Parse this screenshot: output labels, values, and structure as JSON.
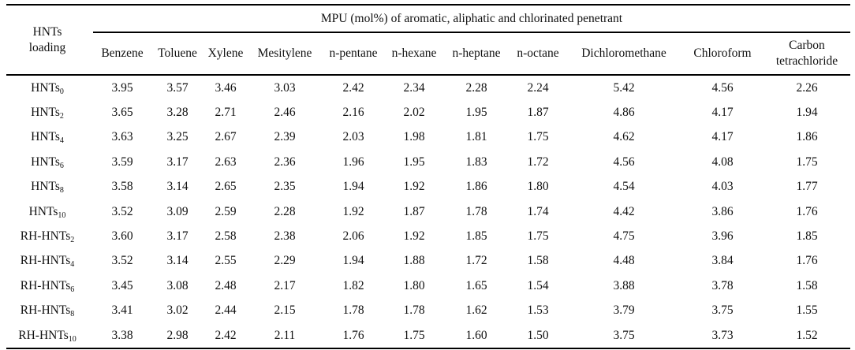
{
  "chart_data": {
    "type": "table",
    "row_header_label": [
      "HNTs",
      "loading"
    ],
    "group_header": "MPU (mol%) of aromatic, aliphatic and chlorinated penetrant",
    "columns": [
      {
        "label": "Benzene"
      },
      {
        "label": "Toluene"
      },
      {
        "label": "Xylene"
      },
      {
        "label": "Mesitylene"
      },
      {
        "label": "n-pentane"
      },
      {
        "label": "n-hexane"
      },
      {
        "label": "n-heptane"
      },
      {
        "label": "n-octane"
      },
      {
        "label": "Dichloromethane"
      },
      {
        "label": "Chloroform"
      },
      {
        "label": "Carbon",
        "label2": "tetrachloride"
      }
    ],
    "rows": [
      {
        "prefix": "HNTs",
        "sub": "0",
        "values": [
          "3.95",
          "3.57",
          "3.46",
          "3.03",
          "2.42",
          "2.34",
          "2.28",
          "2.24",
          "5.42",
          "4.56",
          "2.26"
        ]
      },
      {
        "prefix": "HNTs",
        "sub": "2",
        "values": [
          "3.65",
          "3.28",
          "2.71",
          "2.46",
          "2.16",
          "2.02",
          "1.95",
          "1.87",
          "4.86",
          "4.17",
          "1.94"
        ]
      },
      {
        "prefix": "HNTs",
        "sub": "4",
        "values": [
          "3.63",
          "3.25",
          "2.67",
          "2.39",
          "2.03",
          "1.98",
          "1.81",
          "1.75",
          "4.62",
          "4.17",
          "1.86"
        ]
      },
      {
        "prefix": "HNTs",
        "sub": "6",
        "values": [
          "3.59",
          "3.17",
          "2.63",
          "2.36",
          "1.96",
          "1.95",
          "1.83",
          "1.72",
          "4.56",
          "4.08",
          "1.75"
        ]
      },
      {
        "prefix": "HNTs",
        "sub": "8",
        "values": [
          "3.58",
          "3.14",
          "2.65",
          "2.35",
          "1.94",
          "1.92",
          "1.86",
          "1.80",
          "4.54",
          "4.03",
          "1.77"
        ]
      },
      {
        "prefix": "HNTs",
        "sub": "10",
        "values": [
          "3.52",
          "3.09",
          "2.59",
          "2.28",
          "1.92",
          "1.87",
          "1.78",
          "1.74",
          "4.42",
          "3.86",
          "1.76"
        ]
      },
      {
        "prefix": "RH-HNTs",
        "sub": "2",
        "values": [
          "3.60",
          "3.17",
          "2.58",
          "2.38",
          "2.06",
          "1.92",
          "1.85",
          "1.75",
          "4.75",
          "3.96",
          "1.85"
        ]
      },
      {
        "prefix": "RH-HNTs",
        "sub": "4",
        "values": [
          "3.52",
          "3.14",
          "2.55",
          "2.29",
          "1.94",
          "1.88",
          "1.72",
          "1.58",
          "4.48",
          "3.84",
          "1.76"
        ]
      },
      {
        "prefix": "RH-HNTs",
        "sub": "6",
        "values": [
          "3.45",
          "3.08",
          "2.48",
          "2.17",
          "1.82",
          "1.80",
          "1.65",
          "1.54",
          "3.88",
          "3.78",
          "1.58"
        ]
      },
      {
        "prefix": "RH-HNTs",
        "sub": "8",
        "values": [
          "3.41",
          "3.02",
          "2.44",
          "2.15",
          "1.78",
          "1.78",
          "1.62",
          "1.53",
          "3.79",
          "3.75",
          "1.55"
        ]
      },
      {
        "prefix": "RH-HNTs",
        "sub": "10",
        "values": [
          "3.38",
          "2.98",
          "2.42",
          "2.11",
          "1.76",
          "1.75",
          "1.60",
          "1.50",
          "3.75",
          "3.73",
          "1.52"
        ]
      }
    ]
  }
}
